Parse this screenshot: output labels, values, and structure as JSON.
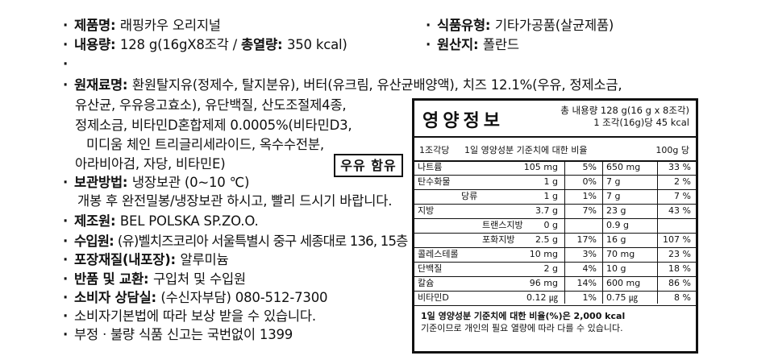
{
  "left": {
    "product_name": {
      "label": "제품명",
      "value": "래핑카우 오리지널"
    },
    "content": {
      "label": "내용량",
      "value_pre": "128 g(16gX8조각 / ",
      "sub_label": "총열량",
      "value_post": "350 kcal)"
    },
    "ingredients": {
      "label": "원재료명",
      "lines": [
        "환원탈지유(정제수, 탈지분유), 버터(유크림, 유산균배양액), 치즈 12.1%(우유, 정제소금,",
        "유산균, 우유응고효소), 유단백질, 산도조절제4종,",
        "정제소금, 비타민D혼합제제 0.0005%(비타민D3,",
        "미디움 체인 트리글리세라이드, 옥수수전분,",
        "아라비아검, 자당, 비타민E)"
      ]
    },
    "milk_notice": "우유 함유",
    "storage": {
      "label": "보관방법",
      "value": "냉장보관 (0~10 ℃)",
      "note": "개봉 후 완전밀봉/냉장보관 하시고, 빨리 드시기 바랍니다."
    },
    "manufacturer": {
      "label": "제조원",
      "value": "BEL POLSKA SP.ZO.O."
    },
    "importer": {
      "label": "수입원",
      "value": "(유)벨치즈코리아 서울특별시 중구 세종대로 136, 15층"
    },
    "packaging": {
      "label": "포장재질(내포장)",
      "value": "알루미늄"
    },
    "returns": {
      "label": "반품 및 교환",
      "value": "구입처 및 수입원"
    },
    "consult": {
      "label": "소비자 상담실",
      "value": "(수신자부담) 080-512-7300"
    },
    "compensation": "소비자기본법에 따라 보상 받을 수 있습니다.",
    "report": "부정ㆍ불량 식품 신고는 국번없이 1399"
  },
  "right": {
    "food_type": {
      "label": "식품유형",
      "value": "기타가공품(살균제품)"
    },
    "origin": {
      "label": "원산지",
      "value": "폴란드"
    }
  },
  "nutrition": {
    "title": "영양정보",
    "total_line1": "총 내용량 128 g(16 g x 8조각)",
    "total_line2": "1 조각(16g)당 45 kcal",
    "col_piece": "1조각당",
    "col_dv": "1일 영양성분 기준치에 대한 비율",
    "col_100g": "100g 당",
    "rows": [
      {
        "name": "나트륨",
        "amount": "105 mg",
        "dv": "5%",
        "per100": "650 mg",
        "dv100": "33 %"
      },
      {
        "name": "탄수화물",
        "amount": "1 g",
        "dv": "0%",
        "per100": "7 g",
        "dv100": "2 %"
      },
      {
        "name": "당류",
        "amount": "1 g",
        "dv": "1%",
        "per100": "7 g",
        "dv100": "7 %"
      },
      {
        "name": "지방",
        "amount": "3.7 g",
        "dv": "7%",
        "per100": "23 g",
        "dv100": "43 %"
      },
      {
        "name": "트랜스지방",
        "amount": "0 g",
        "dv": "",
        "per100": "0.9 g",
        "dv100": ""
      },
      {
        "name": "포화지방",
        "amount": "2.5 g",
        "dv": "17%",
        "per100": "16 g",
        "dv100": "107 %"
      },
      {
        "name": "콜레스테롤",
        "amount": "10 mg",
        "dv": "3%",
        "per100": "70 mg",
        "dv100": "23 %"
      },
      {
        "name": "단백질",
        "amount": "2 g",
        "dv": "4%",
        "per100": "10 g",
        "dv100": "18 %"
      },
      {
        "name": "칼슘",
        "amount": "96 mg",
        "dv": "14%",
        "per100": "600 mg",
        "dv100": "86 %"
      },
      {
        "name": "비타민D",
        "amount": "0.12 ㎍",
        "dv": "1%",
        "per100": "0.75 ㎍",
        "dv100": "8 %"
      }
    ],
    "footnote1": "1일 영양성분 기준치에 대한 비율(%)은 2,000 kcal",
    "footnote2": "기준이므로 개인의 필요 열량에 따라 다를 수 있습니다."
  }
}
